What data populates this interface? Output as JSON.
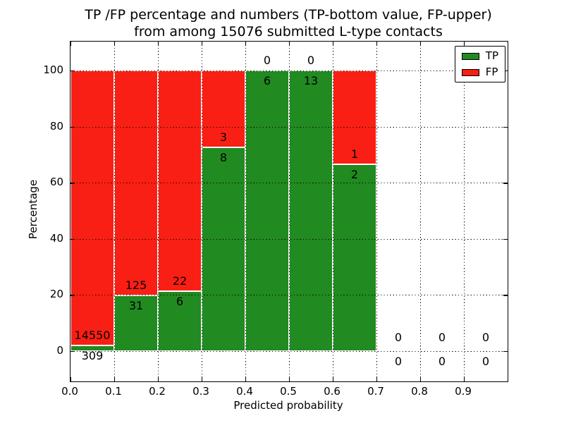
{
  "title_line1": "TP /FP percentage and numbers (TP-bottom value, FP-upper)",
  "title_line2": "from among 15076 submitted L-type contacts",
  "chart_data": {
    "type": "bar",
    "stacked": true,
    "title": "TP /FP percentage and numbers (TP-bottom value, FP-upper) from among 15076 submitted L-type contacts",
    "xlabel": "Predicted probability",
    "ylabel": "Percentage",
    "xlim": [
      0.0,
      1.0
    ],
    "ylim": [
      -10.8,
      110.3
    ],
    "x_ticks": [
      "0.0",
      "0.1",
      "0.2",
      "0.3",
      "0.4",
      "0.5",
      "0.6",
      "0.7",
      "0.8",
      "0.9"
    ],
    "y_ticks": [
      0,
      20,
      40,
      60,
      80,
      100
    ],
    "y_tick_labels": [
      "0",
      "20",
      "40",
      "60",
      "80",
      "100"
    ],
    "grid": true,
    "grid_linestyle": "dotted",
    "legend_position": "upper right",
    "colors": {
      "tp": "#218a21",
      "fp": "#fa1f14",
      "bar_edge": "#ffffff"
    },
    "series": [
      {
        "name": "TP",
        "color": "#218a21",
        "counts": [
          309,
          31,
          6,
          8,
          6,
          13,
          2,
          0,
          0,
          0
        ]
      },
      {
        "name": "FP",
        "color": "#fa1f14",
        "counts": [
          14550,
          125,
          22,
          3,
          0,
          0,
          1,
          0,
          0,
          0
        ]
      }
    ],
    "bins": [
      {
        "x_range": [
          0.0,
          0.1
        ],
        "tp": 309,
        "fp": 14550,
        "tp_pct": 2.08
      },
      {
        "x_range": [
          0.1,
          0.2
        ],
        "tp": 31,
        "fp": 125,
        "tp_pct": 19.87
      },
      {
        "x_range": [
          0.2,
          0.3
        ],
        "tp": 6,
        "fp": 22,
        "tp_pct": 21.43
      },
      {
        "x_range": [
          0.3,
          0.4
        ],
        "tp": 8,
        "fp": 3,
        "tp_pct": 72.73
      },
      {
        "x_range": [
          0.4,
          0.5
        ],
        "tp": 6,
        "fp": 0,
        "tp_pct": 100
      },
      {
        "x_range": [
          0.5,
          0.6
        ],
        "tp": 13,
        "fp": 0,
        "tp_pct": 100
      },
      {
        "x_range": [
          0.6,
          0.7
        ],
        "tp": 2,
        "fp": 1,
        "tp_pct": 66.67
      },
      {
        "x_range": [
          0.7,
          0.8
        ],
        "tp": 0,
        "fp": 0,
        "tp_pct": 0
      },
      {
        "x_range": [
          0.8,
          0.9
        ],
        "tp": 0,
        "fp": 0,
        "tp_pct": 0
      },
      {
        "x_range": [
          0.9,
          1.0
        ],
        "tp": 0,
        "fp": 0,
        "tp_pct": 0
      }
    ],
    "legend": {
      "entries": [
        {
          "label": "TP",
          "color": "#218a21"
        },
        {
          "label": "FP",
          "color": "#fa1f14"
        }
      ]
    }
  }
}
